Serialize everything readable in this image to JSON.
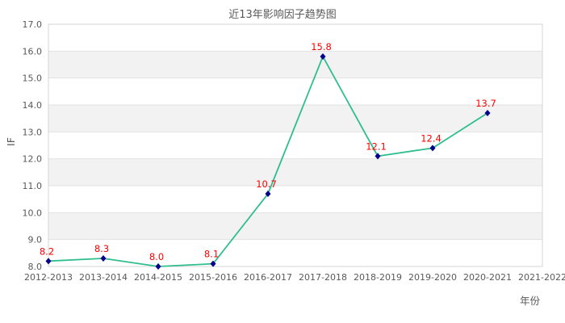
{
  "chart_data": {
    "type": "line",
    "title": "近13年影响因子趋势图",
    "xlabel": "年份",
    "ylabel": "IF",
    "categories": [
      "2012-2013",
      "2013-2014",
      "2014-2015",
      "2015-2016",
      "2016-2017",
      "2017-2018",
      "2018-2019",
      "2019-2020",
      "2020-2021",
      "2021-2022"
    ],
    "values": [
      8.2,
      8.3,
      8.0,
      8.1,
      10.7,
      15.8,
      12.1,
      12.4,
      13.7,
      null
    ],
    "ylim": [
      8.0,
      17.0
    ],
    "ytick_step": 1.0,
    "ytick_decimals": 1,
    "grid": true,
    "legend_position": "none",
    "band_fill": "alternating-horizontal",
    "colors": {
      "line": "#2fbe8f",
      "marker": "#00008b",
      "value_label": "#ff0000",
      "band": "#f2f2f2",
      "grid_line": "#e2e2e2",
      "plot_border": "#d4d4d4",
      "tick_text": "#595959",
      "background": "#ffffff"
    }
  }
}
